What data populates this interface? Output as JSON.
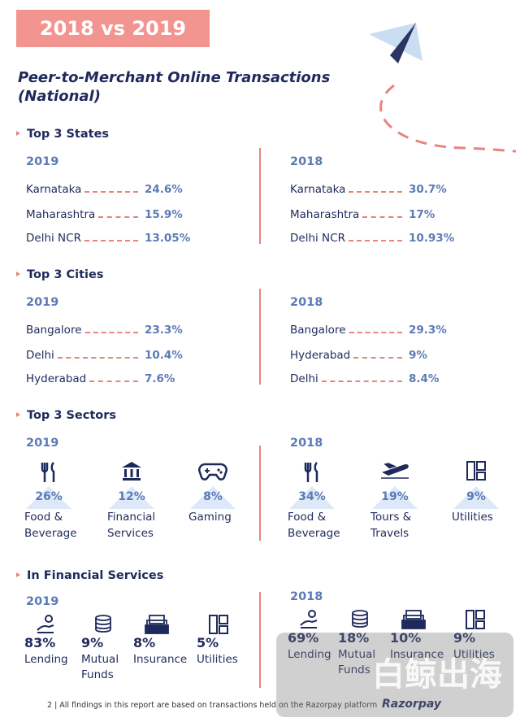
{
  "badge": "2018 vs 2019",
  "title": [
    "Peer-to-Merchant Online Transactions",
    "(National)"
  ],
  "states": {
    "heading": "Top 3 States",
    "columns": [
      {
        "year": "2019",
        "rows": [
          {
            "name": "Karnataka",
            "value": "24.6%"
          },
          {
            "name": "Maharashtra",
            "value": "15.9%"
          },
          {
            "name": "Delhi NCR",
            "value": "13.05%"
          }
        ]
      },
      {
        "year": "2018",
        "rows": [
          {
            "name": "Karnataka",
            "value": "30.7%"
          },
          {
            "name": "Maharashtra",
            "value": "17%"
          },
          {
            "name": "Delhi NCR",
            "value": "10.93%"
          }
        ]
      }
    ]
  },
  "cities": {
    "heading": "Top 3 Cities",
    "columns": [
      {
        "year": "2019",
        "rows": [
          {
            "name": "Bangalore",
            "value": "23.3%"
          },
          {
            "name": "Delhi",
            "value": "10.4%"
          },
          {
            "name": "Hyderabad",
            "value": "7.6%"
          }
        ]
      },
      {
        "year": "2018",
        "rows": [
          {
            "name": "Bangalore",
            "value": "29.3%"
          },
          {
            "name": "Hyderabad",
            "value": "9%"
          },
          {
            "name": "Delhi",
            "value": "8.4%"
          }
        ]
      }
    ]
  },
  "sectors": {
    "heading": "Top 3 Sectors",
    "columns": [
      {
        "year": "2019",
        "items": [
          {
            "value": "26%",
            "label": "Food & Beverage"
          },
          {
            "value": "12%",
            "label": "Financial Services"
          },
          {
            "value": "8%",
            "label": "Gaming"
          }
        ]
      },
      {
        "year": "2018",
        "items": [
          {
            "value": "34%",
            "label": "Food & Beverage"
          },
          {
            "value": "19%",
            "label": "Tours & Travels"
          },
          {
            "value": "9%",
            "label": "Utilities"
          }
        ]
      }
    ]
  },
  "financial": {
    "heading": "In Financial Services",
    "columns": [
      {
        "year": "2019",
        "items": [
          {
            "value": "83%",
            "label": "Lending"
          },
          {
            "value": "9%",
            "label": "Mutual Funds"
          },
          {
            "value": "8%",
            "label": "Insurance"
          },
          {
            "value": "5%",
            "label": "Utilities"
          }
        ]
      },
      {
        "year": "2018",
        "items": [
          {
            "value": "69%",
            "label": "Lending"
          },
          {
            "value": "18%",
            "label": "Mutual Funds"
          },
          {
            "value": "10%",
            "label": "Insurance"
          },
          {
            "value": "9%",
            "label": "Utilities"
          }
        ]
      }
    ]
  },
  "footer": {
    "text": "2 | All findings in this report are based on transactions held on the Razorpay platform",
    "brand": "Razorpay"
  },
  "watermark": "白鲸出海"
}
